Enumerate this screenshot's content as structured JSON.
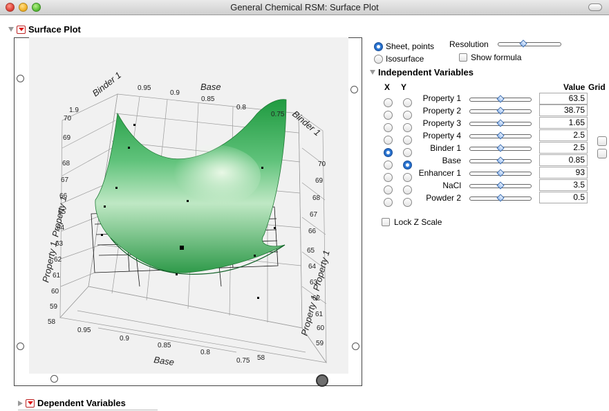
{
  "window": {
    "title": "General Chemical RSM: Surface Plot"
  },
  "surface_plot": {
    "header": "Surface Plot",
    "axes": {
      "x_label": "Base",
      "y_label": "Binder 1",
      "z_label": "Property 1, Property 1",
      "front_base_ticks": [
        "0.95",
        "0.9",
        "0.85",
        "0.8",
        "0.75"
      ],
      "back_base_ticks": [
        "0.95",
        "0.9",
        "0.85",
        "0.8",
        "0.75"
      ],
      "left_z_ticks": [
        "58",
        "59",
        "60",
        "61",
        "62",
        "63",
        "64",
        "65",
        "66",
        "67",
        "68",
        "69",
        "70"
      ],
      "right_z_ticks": [
        "58",
        "59",
        "60",
        "61",
        "62",
        "63",
        "64",
        "65",
        "66",
        "67",
        "68",
        "69",
        "70"
      ],
      "binder_tick": "1.9"
    }
  },
  "controls": {
    "sheet_points_label": "Sheet, points",
    "isosurface_label": "Isosurface",
    "resolution_label": "Resolution",
    "show_formula_label": "Show formula"
  },
  "independent_variables": {
    "header": "Independent Variables",
    "col_x": "X",
    "col_y": "Y",
    "col_value": "Value",
    "col_grid": "Grid",
    "rows": [
      {
        "name": "Property 1",
        "value": "63.5"
      },
      {
        "name": "Property 2",
        "value": "38.75"
      },
      {
        "name": "Property 3",
        "value": "1.65"
      },
      {
        "name": "Property 4",
        "value": "2.5"
      },
      {
        "name": "Binder 1",
        "value": "2.5"
      },
      {
        "name": "Base",
        "value": "0.85"
      },
      {
        "name": "Enhancer 1",
        "value": "93"
      },
      {
        "name": "NaCl",
        "value": "3.5"
      },
      {
        "name": "Powder 2",
        "value": "0.5"
      }
    ],
    "lock_z_label": "Lock Z Scale"
  },
  "dependent_variables": {
    "header": "Dependent Variables"
  }
}
